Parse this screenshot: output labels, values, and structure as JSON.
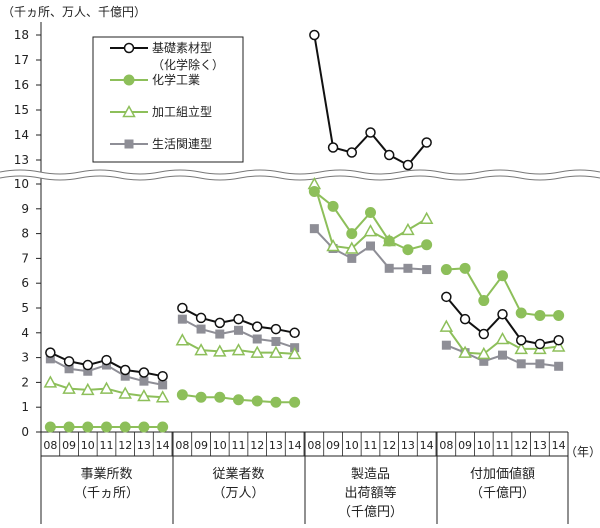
{
  "chart_data": {
    "type": "line",
    "unit_label": "（千ヵ所、万人、千億円）",
    "year_unit_label": "（年）",
    "y_ticks_lower": [
      0,
      1,
      2,
      3,
      4,
      5,
      6,
      7,
      8,
      9,
      10
    ],
    "y_ticks_upper": [
      13,
      14,
      15,
      16,
      17,
      18
    ],
    "ylim_lower": [
      0,
      10
    ],
    "ylim_upper": [
      12.7,
      18.3
    ],
    "year_labels": [
      "08",
      "09",
      "10",
      "11",
      "12",
      "13",
      "14"
    ],
    "groups": [
      {
        "label": [
          "事業所数",
          "（千ヵ所）"
        ]
      },
      {
        "label": [
          "従業者数",
          "（万人）"
        ]
      },
      {
        "label": [
          "製造品",
          "出荷額等",
          "（千億円）"
        ]
      },
      {
        "label": [
          "付加価値額",
          "（千億円）"
        ]
      }
    ],
    "series": [
      {
        "name": "基礎素材型\n（化学除く）",
        "color": "#111111",
        "marker": "circle-open",
        "groups": [
          [
            3.2,
            2.85,
            2.7,
            2.9,
            2.5,
            2.4,
            2.25
          ],
          [
            5.0,
            4.6,
            4.4,
            4.55,
            4.25,
            4.15,
            4.0
          ],
          [
            18.0,
            13.5,
            13.3,
            14.1,
            13.2,
            12.8,
            13.7
          ],
          [
            5.45,
            4.55,
            3.95,
            4.75,
            3.7,
            3.55,
            3.7
          ]
        ]
      },
      {
        "name": "化学工業",
        "color": "#8dbf5a",
        "marker": "circle-filled",
        "groups": [
          [
            0.2,
            0.2,
            0.2,
            0.2,
            0.2,
            0.2,
            0.2
          ],
          [
            1.5,
            1.4,
            1.4,
            1.3,
            1.25,
            1.2,
            1.2
          ],
          [
            9.7,
            9.1,
            8.0,
            8.85,
            7.7,
            7.35,
            7.55
          ],
          [
            6.55,
            6.6,
            5.3,
            6.3,
            4.8,
            4.7,
            4.7
          ]
        ]
      },
      {
        "name": "加工組立型",
        "color": "#8dbf5a",
        "marker": "triangle-open",
        "groups": [
          [
            2.0,
            1.75,
            1.7,
            1.75,
            1.55,
            1.45,
            1.4
          ],
          [
            3.7,
            3.3,
            3.25,
            3.3,
            3.2,
            3.2,
            3.15
          ],
          [
            10.0,
            7.5,
            7.4,
            8.1,
            7.7,
            8.15,
            8.6
          ],
          [
            4.25,
            3.2,
            3.15,
            3.75,
            3.35,
            3.35,
            3.45
          ]
        ]
      },
      {
        "name": "生活関連型",
        "color": "#8e8e96",
        "marker": "square-filled",
        "groups": [
          [
            2.95,
            2.55,
            2.45,
            2.7,
            2.25,
            2.05,
            1.9
          ],
          [
            4.55,
            4.15,
            3.95,
            4.1,
            3.75,
            3.65,
            3.4
          ],
          [
            8.2,
            7.4,
            7.0,
            7.5,
            6.6,
            6.6,
            6.55
          ],
          [
            3.5,
            3.2,
            2.85,
            3.1,
            2.75,
            2.75,
            2.65
          ]
        ]
      }
    ],
    "grid": false,
    "legend_position": "top-left-inside"
  }
}
